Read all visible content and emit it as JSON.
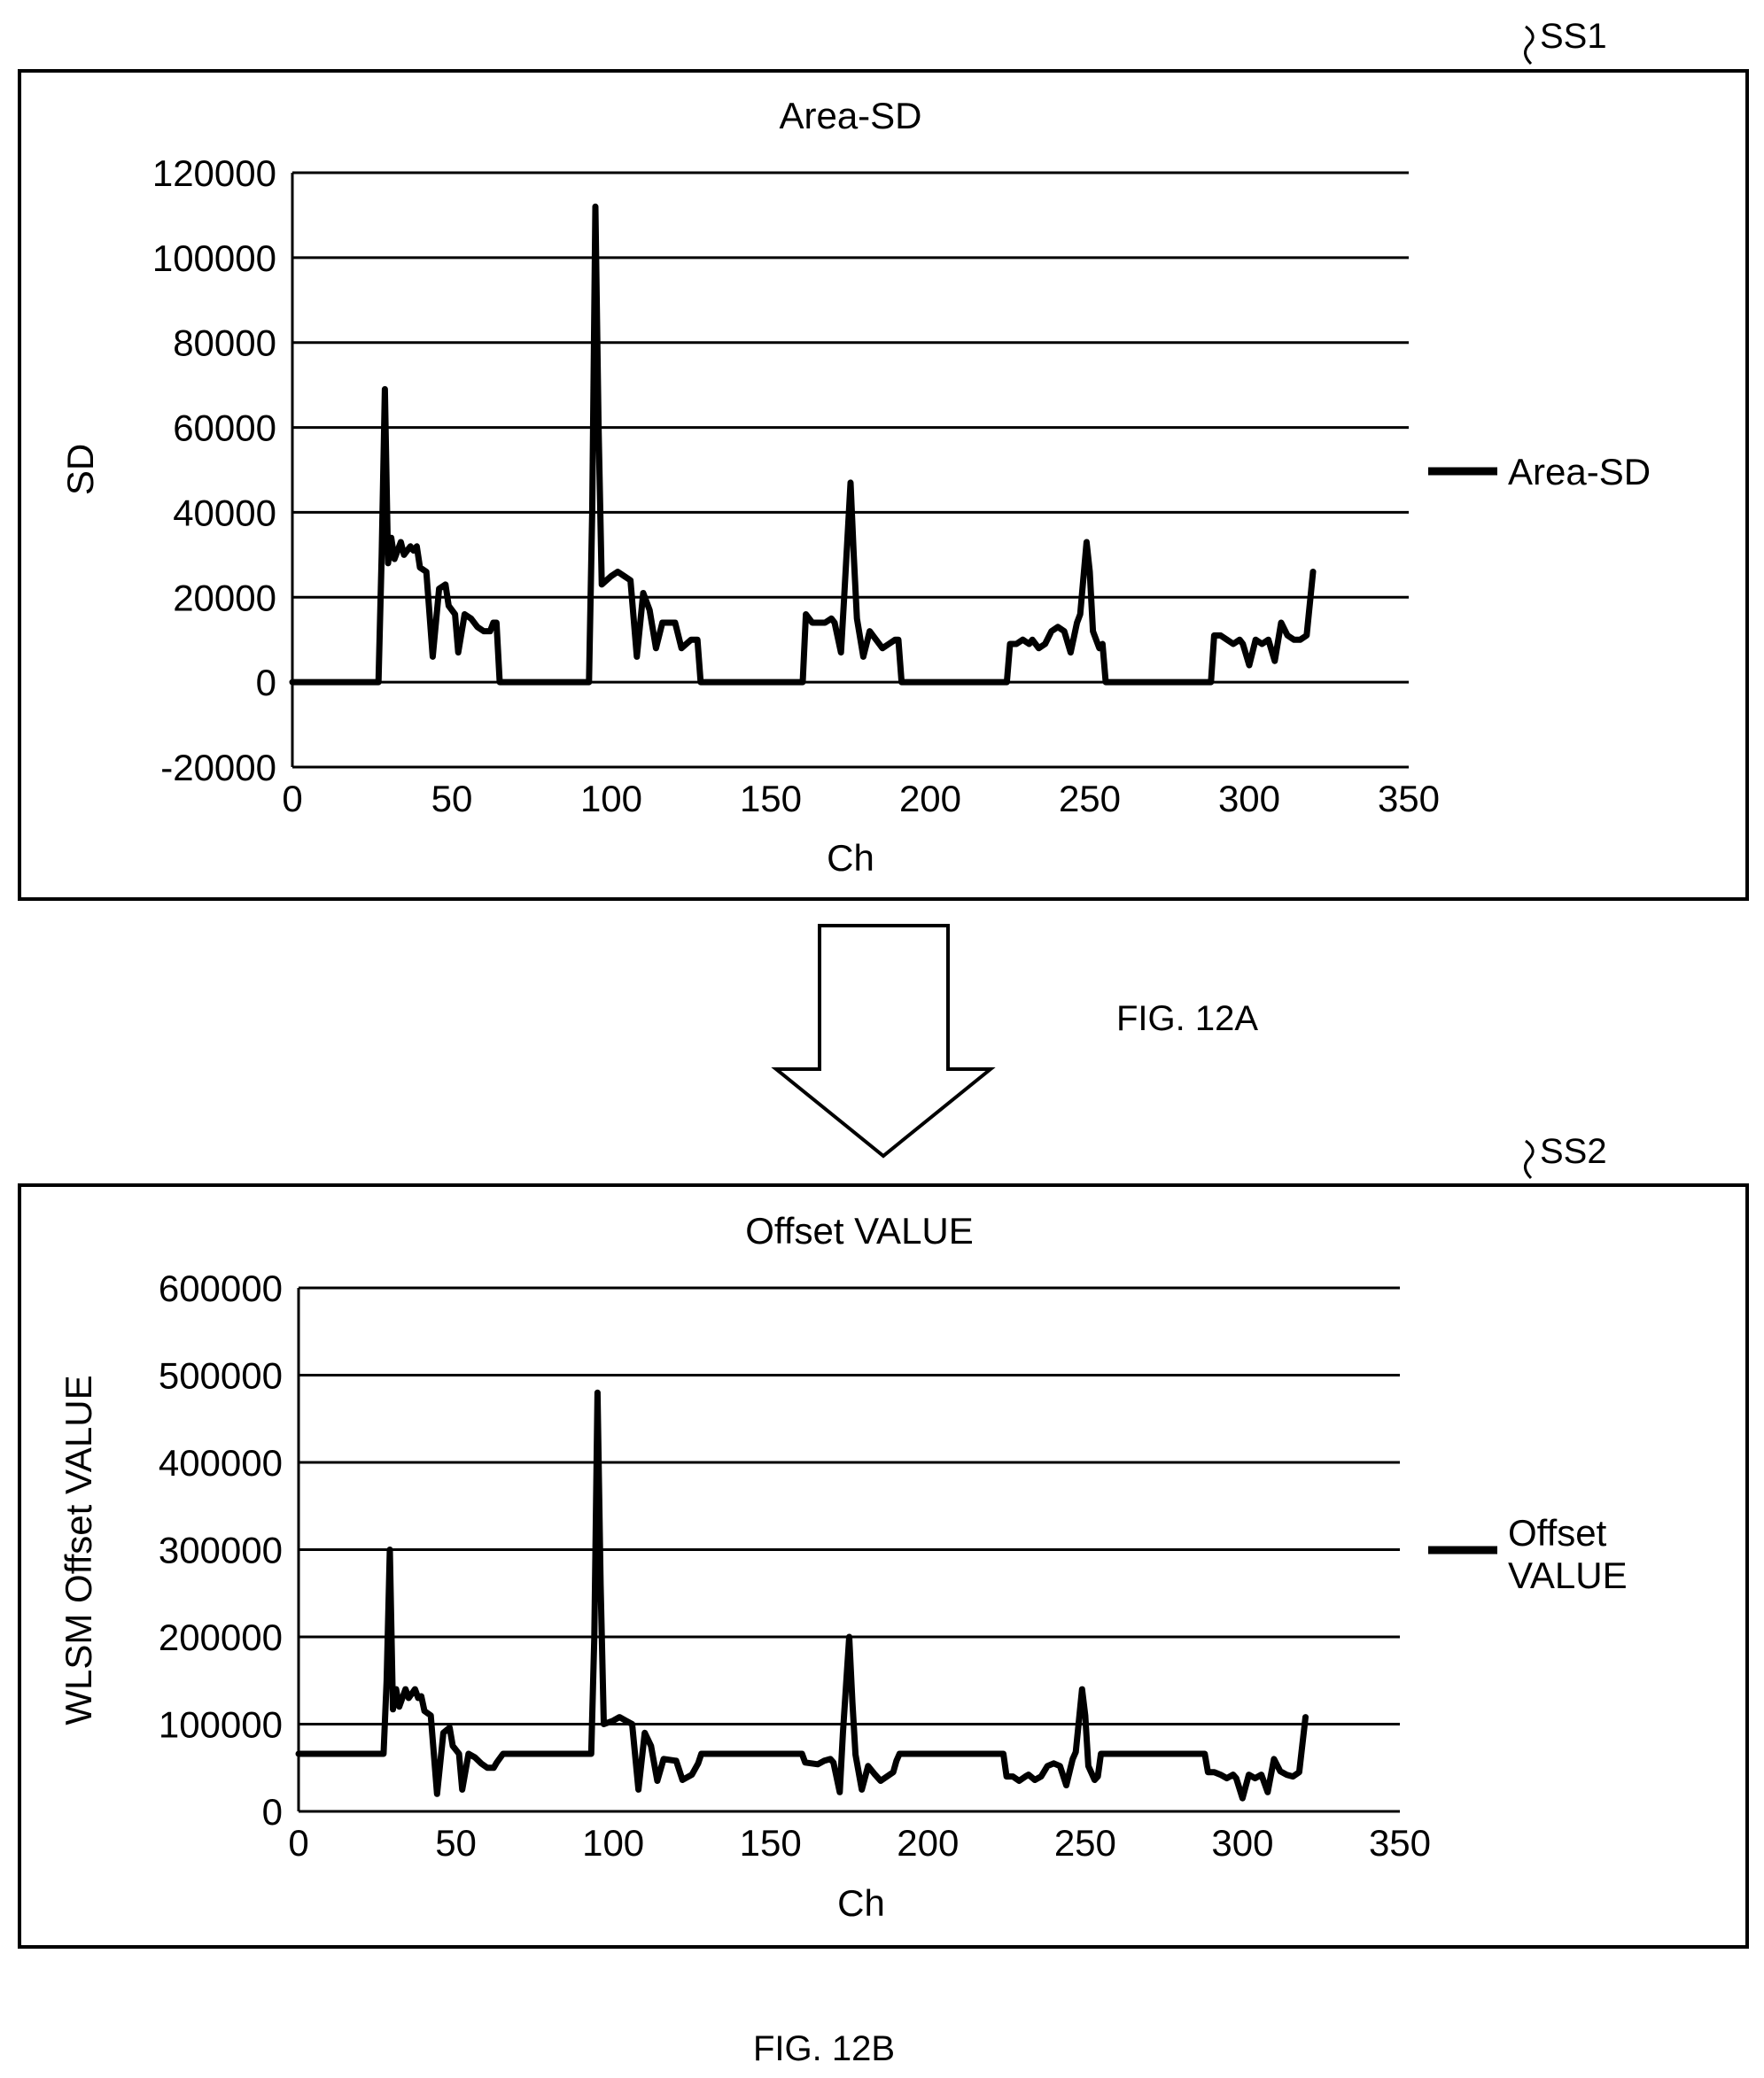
{
  "figures": [
    {
      "ref_label": "SS1",
      "caption": "FIG. 12A"
    },
    {
      "ref_label": "SS2",
      "caption": "FIG. 12B"
    }
  ],
  "colors": {
    "line": "#000000",
    "background": "#ffffff",
    "grid": "#000000"
  },
  "chart_data": [
    {
      "type": "line",
      "title": "Area-SD",
      "xlabel": "Ch",
      "ylabel": "SD",
      "xlim": [
        0,
        350
      ],
      "ylim": [
        -20000,
        120000
      ],
      "xticks": [
        0,
        50,
        100,
        150,
        200,
        250,
        300,
        350
      ],
      "xtick_labels": [
        "0",
        "50",
        "100",
        "150",
        "200",
        "250",
        "300",
        "350"
      ],
      "yticks": [
        -20000,
        0,
        20000,
        40000,
        60000,
        80000,
        100000,
        120000
      ],
      "ytick_labels": [
        "-20000",
        "0",
        "20000",
        "40000",
        "60000",
        "80000",
        "100000",
        "120000"
      ],
      "grid": "horizontal",
      "legend_position": "right",
      "series": [
        {
          "name": "Area-SD",
          "points": [
            [
              0,
              0
            ],
            [
              27,
              0
            ],
            [
              28,
              30000
            ],
            [
              29,
              69000
            ],
            [
              30,
              28000
            ],
            [
              31,
              34000
            ],
            [
              32,
              29000
            ],
            [
              34,
              33000
            ],
            [
              35,
              30000
            ],
            [
              37,
              32000
            ],
            [
              38,
              31000
            ],
            [
              39,
              32000
            ],
            [
              40,
              27000
            ],
            [
              42,
              26000
            ],
            [
              44,
              6000
            ],
            [
              46,
              22000
            ],
            [
              48,
              23000
            ],
            [
              49,
              18000
            ],
            [
              51,
              16000
            ],
            [
              52,
              7000
            ],
            [
              54,
              16000
            ],
            [
              56,
              15000
            ],
            [
              58,
              13000
            ],
            [
              60,
              12000
            ],
            [
              62,
              12000
            ],
            [
              63,
              14000
            ],
            [
              64,
              14000
            ],
            [
              65,
              0
            ],
            [
              93,
              0
            ],
            [
              94,
              40000
            ],
            [
              95,
              112000
            ],
            [
              96,
              60000
            ],
            [
              97,
              23000
            ],
            [
              100,
              25000
            ],
            [
              102,
              26000
            ],
            [
              104,
              25000
            ],
            [
              106,
              24000
            ],
            [
              108,
              6000
            ],
            [
              110,
              21000
            ],
            [
              112,
              17000
            ],
            [
              114,
              8000
            ],
            [
              116,
              14000
            ],
            [
              120,
              14000
            ],
            [
              122,
              8000
            ],
            [
              125,
              10000
            ],
            [
              127,
              10000
            ],
            [
              128,
              0
            ],
            [
              160,
              0
            ],
            [
              161,
              16000
            ],
            [
              163,
              14000
            ],
            [
              165,
              14000
            ],
            [
              167,
              14000
            ],
            [
              169,
              15000
            ],
            [
              170,
              14000
            ],
            [
              172,
              7000
            ],
            [
              173,
              20000
            ],
            [
              175,
              47000
            ],
            [
              176,
              30000
            ],
            [
              177,
              15000
            ],
            [
              179,
              6000
            ],
            [
              181,
              12000
            ],
            [
              183,
              10000
            ],
            [
              185,
              8000
            ],
            [
              187,
              9000
            ],
            [
              189,
              10000
            ],
            [
              190,
              10000
            ],
            [
              191,
              0
            ],
            [
              224,
              0
            ],
            [
              225,
              9000
            ],
            [
              227,
              9000
            ],
            [
              229,
              10000
            ],
            [
              231,
              9000
            ],
            [
              232,
              10000
            ],
            [
              234,
              8000
            ],
            [
              236,
              9000
            ],
            [
              238,
              12000
            ],
            [
              240,
              13000
            ],
            [
              242,
              12000
            ],
            [
              244,
              7000
            ],
            [
              246,
              14000
            ],
            [
              247,
              16000
            ],
            [
              249,
              33000
            ],
            [
              250,
              26000
            ],
            [
              251,
              12000
            ],
            [
              253,
              8000
            ],
            [
              254,
              9000
            ],
            [
              255,
              0
            ],
            [
              288,
              0
            ],
            [
              289,
              11000
            ],
            [
              291,
              11000
            ],
            [
              293,
              10000
            ],
            [
              295,
              9000
            ],
            [
              297,
              10000
            ],
            [
              298,
              9000
            ],
            [
              300,
              4000
            ],
            [
              302,
              10000
            ],
            [
              304,
              9000
            ],
            [
              306,
              10000
            ],
            [
              308,
              5000
            ],
            [
              310,
              14000
            ],
            [
              312,
              11000
            ],
            [
              314,
              10000
            ],
            [
              316,
              10000
            ],
            [
              318,
              11000
            ],
            [
              320,
              26000
            ]
          ]
        }
      ]
    },
    {
      "type": "line",
      "title": "Offset VALUE",
      "xlabel": "Ch",
      "ylabel": "WLSM Offset VALUE",
      "xlim": [
        0,
        350
      ],
      "ylim": [
        0,
        600000
      ],
      "xticks": [
        0,
        50,
        100,
        150,
        200,
        250,
        300,
        350
      ],
      "xtick_labels": [
        "0",
        "50",
        "100",
        "150",
        "200",
        "250",
        "300",
        "350"
      ],
      "yticks": [
        0,
        100000,
        200000,
        300000,
        400000,
        500000,
        600000
      ],
      "ytick_labels": [
        "0",
        "100000",
        "200000",
        "300000",
        "400000",
        "500000",
        "600000"
      ],
      "grid": "horizontal",
      "legend_position": "right",
      "series": [
        {
          "name": "Offset VALUE",
          "legend_lines": [
            "Offset",
            "VALUE"
          ],
          "points": [
            [
              0,
              66000
            ],
            [
              27,
              66000
            ],
            [
              28,
              150000
            ],
            [
              29,
              300000
            ],
            [
              30,
              117000
            ],
            [
              31,
              140000
            ],
            [
              32,
              120000
            ],
            [
              34,
              140000
            ],
            [
              35,
              130000
            ],
            [
              37,
              140000
            ],
            [
              38,
              130000
            ],
            [
              39,
              132000
            ],
            [
              40,
              115000
            ],
            [
              42,
              110000
            ],
            [
              44,
              20000
            ],
            [
              46,
              90000
            ],
            [
              48,
              96000
            ],
            [
              49,
              75000
            ],
            [
              51,
              66000
            ],
            [
              52,
              25000
            ],
            [
              54,
              66000
            ],
            [
              56,
              62000
            ],
            [
              58,
              55000
            ],
            [
              60,
              50000
            ],
            [
              62,
              50000
            ],
            [
              63,
              56000
            ],
            [
              65,
              66000
            ],
            [
              93,
              66000
            ],
            [
              94,
              200000
            ],
            [
              95,
              480000
            ],
            [
              96,
              260000
            ],
            [
              97,
              100000
            ],
            [
              100,
              104000
            ],
            [
              102,
              108000
            ],
            [
              104,
              104000
            ],
            [
              106,
              100000
            ],
            [
              108,
              25000
            ],
            [
              110,
              90000
            ],
            [
              112,
              75000
            ],
            [
              114,
              35000
            ],
            [
              116,
              60000
            ],
            [
              120,
              58000
            ],
            [
              122,
              36000
            ],
            [
              125,
              42000
            ],
            [
              127,
              55000
            ],
            [
              128,
              66000
            ],
            [
              160,
              66000
            ],
            [
              161,
              56000
            ],
            [
              163,
              55000
            ],
            [
              165,
              54000
            ],
            [
              167,
              58000
            ],
            [
              169,
              60000
            ],
            [
              170,
              56000
            ],
            [
              172,
              22000
            ],
            [
              173,
              90000
            ],
            [
              175,
              200000
            ],
            [
              176,
              125000
            ],
            [
              177,
              65000
            ],
            [
              179,
              25000
            ],
            [
              181,
              52000
            ],
            [
              183,
              43000
            ],
            [
              185,
              35000
            ],
            [
              187,
              40000
            ],
            [
              189,
              45000
            ],
            [
              190,
              58000
            ],
            [
              191,
              66000
            ],
            [
              224,
              66000
            ],
            [
              225,
              40000
            ],
            [
              227,
              40000
            ],
            [
              229,
              35000
            ],
            [
              231,
              40000
            ],
            [
              232,
              42000
            ],
            [
              234,
              36000
            ],
            [
              236,
              40000
            ],
            [
              238,
              52000
            ],
            [
              240,
              55000
            ],
            [
              242,
              52000
            ],
            [
              244,
              30000
            ],
            [
              246,
              60000
            ],
            [
              247,
              68000
            ],
            [
              249,
              140000
            ],
            [
              250,
              110000
            ],
            [
              251,
              52000
            ],
            [
              253,
              36000
            ],
            [
              254,
              40000
            ],
            [
              255,
              66000
            ],
            [
              288,
              66000
            ],
            [
              289,
              45000
            ],
            [
              291,
              45000
            ],
            [
              293,
              42000
            ],
            [
              295,
              38000
            ],
            [
              297,
              42000
            ],
            [
              298,
              38000
            ],
            [
              300,
              15000
            ],
            [
              302,
              42000
            ],
            [
              304,
              38000
            ],
            [
              306,
              42000
            ],
            [
              308,
              22000
            ],
            [
              310,
              60000
            ],
            [
              312,
              46000
            ],
            [
              314,
              42000
            ],
            [
              316,
              40000
            ],
            [
              318,
              45000
            ],
            [
              320,
              108000
            ]
          ]
        }
      ]
    }
  ]
}
